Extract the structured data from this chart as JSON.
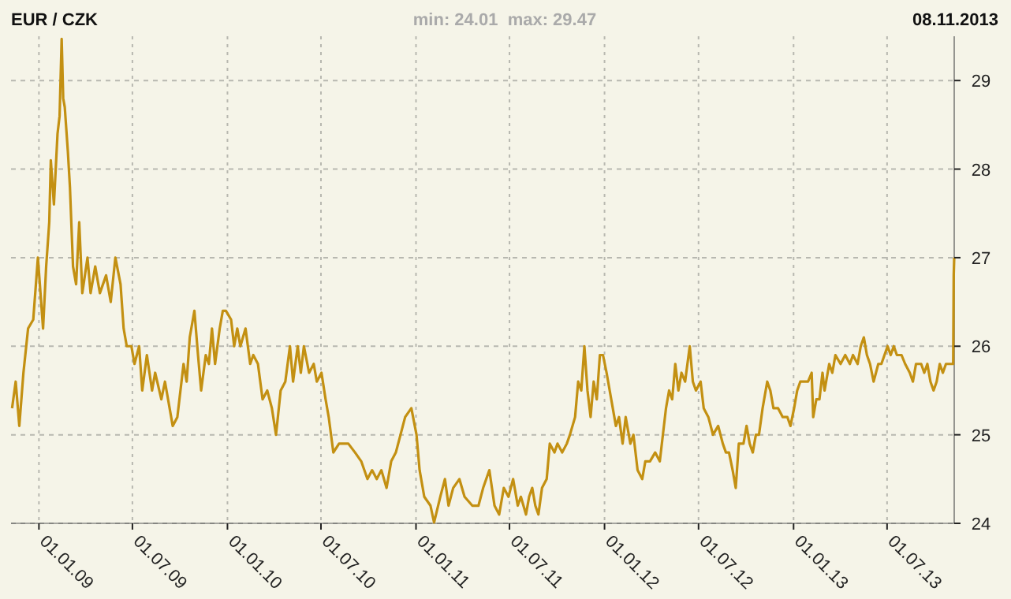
{
  "chart_data": {
    "type": "line",
    "title": "EUR / CZK",
    "subtitle": "min: 24.01  max: 29.47",
    "annotations": [
      "08.11.2013"
    ],
    "xlim": [
      "2008-11-08",
      "2013-11-08"
    ],
    "xticks": [
      {
        "value": "2009-01-01",
        "label": "01.01.09"
      },
      {
        "value": "2009-07-01",
        "label": "01.07.09"
      },
      {
        "value": "2010-01-01",
        "label": "01.01.10"
      },
      {
        "value": "2010-07-01",
        "label": "01.07.10"
      },
      {
        "value": "2011-01-01",
        "label": "01.01.11"
      },
      {
        "value": "2011-07-01",
        "label": "01.07.11"
      },
      {
        "value": "2012-01-01",
        "label": "01.01.12"
      },
      {
        "value": "2012-07-01",
        "label": "01.07.12"
      },
      {
        "value": "2013-01-01",
        "label": "01.01.13"
      },
      {
        "value": "2013-07-01",
        "label": "01.07.13"
      }
    ],
    "ylim": [
      24,
      29.5
    ],
    "yticks": [
      24,
      25,
      26,
      27,
      28,
      29
    ],
    "grid": true,
    "marker": "none",
    "line_style": "solid",
    "series": [
      {
        "color": "#c39012",
        "x": [
          "2008-11-10",
          "2008-11-17",
          "2008-11-24",
          "2008-12-02",
          "2008-12-11",
          "2008-12-21",
          "2008-12-30",
          "2009-01-09",
          "2009-01-15",
          "2009-01-21",
          "2009-01-24",
          "2009-01-30",
          "2009-02-06",
          "2009-02-10",
          "2009-02-14",
          "2009-02-17",
          "2009-02-20",
          "2009-02-26",
          "2009-03-02",
          "2009-03-08",
          "2009-03-14",
          "2009-03-20",
          "2009-03-26",
          "2009-04-05",
          "2009-04-11",
          "2009-04-20",
          "2009-04-29",
          "2009-05-11",
          "2009-05-20",
          "2009-05-29",
          "2009-06-08",
          "2009-06-14",
          "2009-06-20",
          "2009-06-29",
          "2009-07-05",
          "2009-07-14",
          "2009-07-20",
          "2009-07-29",
          "2009-08-08",
          "2009-08-14",
          "2009-08-26",
          "2009-09-02",
          "2009-09-17",
          "2009-09-26",
          "2009-10-08",
          "2009-10-14",
          "2009-10-20",
          "2009-10-29",
          "2009-11-05",
          "2009-11-11",
          "2009-11-20",
          "2009-11-26",
          "2009-12-02",
          "2009-12-08",
          "2009-12-17",
          "2009-12-23",
          "2009-12-29",
          "2010-01-08",
          "2010-01-14",
          "2010-01-20",
          "2010-01-26",
          "2010-02-05",
          "2010-02-14",
          "2010-02-20",
          "2010-03-01",
          "2010-03-10",
          "2010-03-19",
          "2010-03-28",
          "2010-04-05",
          "2010-04-14",
          "2010-04-23",
          "2010-05-02",
          "2010-05-08",
          "2010-05-17",
          "2010-05-23",
          "2010-05-29",
          "2010-06-08",
          "2010-06-17",
          "2010-06-23",
          "2010-07-02",
          "2010-07-10",
          "2010-07-16",
          "2010-07-25",
          "2010-08-05",
          "2010-08-14",
          "2010-08-23",
          "2010-09-05",
          "2010-09-17",
          "2010-09-29",
          "2010-10-08",
          "2010-10-17",
          "2010-10-26",
          "2010-11-05",
          "2010-11-14",
          "2010-11-23",
          "2010-12-02",
          "2010-12-11",
          "2010-12-23",
          "2011-01-02",
          "2011-01-08",
          "2011-01-17",
          "2011-01-29",
          "2011-02-05",
          "2011-02-17",
          "2011-02-26",
          "2011-03-05",
          "2011-03-14",
          "2011-03-26",
          "2011-04-05",
          "2011-04-20",
          "2011-05-02",
          "2011-05-11",
          "2011-05-23",
          "2011-06-02",
          "2011-06-11",
          "2011-06-20",
          "2011-06-29",
          "2011-07-08",
          "2011-07-17",
          "2011-07-23",
          "2011-08-02",
          "2011-08-08",
          "2011-08-14",
          "2011-08-20",
          "2011-08-26",
          "2011-09-02",
          "2011-09-11",
          "2011-09-17",
          "2011-09-26",
          "2011-10-02",
          "2011-10-11",
          "2011-10-20",
          "2011-10-26",
          "2011-11-05",
          "2011-11-11",
          "2011-11-17",
          "2011-11-23",
          "2011-11-29",
          "2011-12-05",
          "2011-12-11",
          "2011-12-17",
          "2011-12-23",
          "2011-12-29",
          "2012-01-05",
          "2012-01-14",
          "2012-01-23",
          "2012-01-29",
          "2012-02-05",
          "2012-02-11",
          "2012-02-20",
          "2012-02-26",
          "2012-03-05",
          "2012-03-14",
          "2012-03-20",
          "2012-03-29",
          "2012-04-08",
          "2012-04-17",
          "2012-04-23",
          "2012-04-29",
          "2012-05-05",
          "2012-05-11",
          "2012-05-17",
          "2012-05-23",
          "2012-05-29",
          "2012-06-05",
          "2012-06-14",
          "2012-06-20",
          "2012-06-26",
          "2012-07-05",
          "2012-07-11",
          "2012-07-20",
          "2012-07-29",
          "2012-08-08",
          "2012-08-17",
          "2012-08-23",
          "2012-08-29",
          "2012-09-05",
          "2012-09-11",
          "2012-09-17",
          "2012-09-26",
          "2012-10-02",
          "2012-10-08",
          "2012-10-14",
          "2012-10-20",
          "2012-10-26",
          "2012-11-02",
          "2012-11-11",
          "2012-11-17",
          "2012-11-23",
          "2012-12-02",
          "2012-12-11",
          "2012-12-20",
          "2012-12-26",
          "2013-01-02",
          "2013-01-08",
          "2013-01-14",
          "2013-01-23",
          "2013-01-29",
          "2013-02-05",
          "2013-02-08",
          "2013-02-14",
          "2013-02-20",
          "2013-02-26",
          "2013-03-02",
          "2013-03-11",
          "2013-03-17",
          "2013-03-23",
          "2013-04-02",
          "2013-04-11",
          "2013-04-20",
          "2013-04-26",
          "2013-05-05",
          "2013-05-11",
          "2013-05-17",
          "2013-05-23",
          "2013-05-29",
          "2013-06-05",
          "2013-06-14",
          "2013-06-20",
          "2013-06-26",
          "2013-07-02",
          "2013-07-08",
          "2013-07-14",
          "2013-07-20",
          "2013-07-29",
          "2013-08-05",
          "2013-08-14",
          "2013-08-20",
          "2013-08-26",
          "2013-09-05",
          "2013-09-11",
          "2013-09-17",
          "2013-09-23",
          "2013-09-29",
          "2013-10-05",
          "2013-10-11",
          "2013-10-17",
          "2013-10-23",
          "2013-10-29",
          "2013-11-06",
          "2013-11-07",
          "2013-11-08"
        ],
        "values": [
          25.3,
          25.6,
          25.1,
          25.7,
          26.2,
          26.3,
          27.0,
          26.2,
          26.9,
          27.4,
          28.1,
          27.6,
          28.4,
          28.6,
          29.47,
          28.8,
          28.7,
          28.2,
          27.8,
          26.9,
          26.7,
          27.4,
          26.6,
          27.0,
          26.6,
          26.9,
          26.6,
          26.8,
          26.5,
          27.0,
          26.7,
          26.2,
          26.0,
          26.0,
          25.8,
          26.0,
          25.5,
          25.9,
          25.5,
          25.7,
          25.4,
          25.6,
          25.1,
          25.2,
          25.8,
          25.6,
          26.1,
          26.4,
          25.9,
          25.5,
          25.9,
          25.8,
          26.2,
          25.8,
          26.2,
          26.4,
          26.4,
          26.3,
          26.0,
          26.2,
          26.0,
          26.2,
          25.8,
          25.9,
          25.8,
          25.4,
          25.5,
          25.3,
          25.0,
          25.5,
          25.6,
          26.0,
          25.6,
          26.0,
          25.7,
          26.0,
          25.7,
          25.8,
          25.6,
          25.7,
          25.4,
          25.2,
          24.8,
          24.9,
          24.9,
          24.9,
          24.8,
          24.7,
          24.5,
          24.6,
          24.5,
          24.6,
          24.4,
          24.7,
          24.8,
          25.0,
          25.2,
          25.3,
          25.0,
          24.6,
          24.3,
          24.2,
          24.01,
          24.3,
          24.5,
          24.2,
          24.4,
          24.5,
          24.3,
          24.2,
          24.2,
          24.4,
          24.6,
          24.2,
          24.1,
          24.4,
          24.3,
          24.5,
          24.2,
          24.3,
          24.1,
          24.3,
          24.4,
          24.2,
          24.1,
          24.4,
          24.5,
          24.9,
          24.8,
          24.9,
          24.8,
          24.9,
          25.0,
          25.2,
          25.6,
          25.5,
          26.0,
          25.5,
          25.2,
          25.6,
          25.4,
          25.9,
          25.9,
          25.7,
          25.4,
          25.1,
          25.2,
          24.9,
          25.2,
          24.9,
          25.0,
          24.6,
          24.5,
          24.7,
          24.7,
          24.8,
          24.7,
          25.0,
          25.3,
          25.5,
          25.4,
          25.8,
          25.5,
          25.7,
          25.6,
          26.0,
          25.6,
          25.5,
          25.6,
          25.3,
          25.2,
          25.0,
          25.1,
          24.9,
          24.8,
          24.8,
          24.6,
          24.4,
          24.9,
          24.9,
          25.1,
          24.9,
          24.8,
          25.0,
          25.0,
          25.3,
          25.6,
          25.5,
          25.3,
          25.3,
          25.2,
          25.2,
          25.1,
          25.3,
          25.5,
          25.6,
          25.6,
          25.6,
          25.7,
          25.2,
          25.4,
          25.4,
          25.7,
          25.5,
          25.8,
          25.7,
          25.9,
          25.8,
          25.9,
          25.8,
          25.9,
          25.8,
          26.0,
          26.1,
          25.9,
          25.8,
          25.6,
          25.8,
          25.8,
          25.9,
          26.0,
          25.9,
          26.0,
          25.9,
          25.9,
          25.8,
          25.7,
          25.6,
          25.8,
          25.8,
          25.7,
          25.8,
          25.6,
          25.5,
          25.6,
          25.8,
          25.7,
          25.8,
          25.8,
          25.8,
          26.8,
          27.0
        ]
      }
    ]
  }
}
